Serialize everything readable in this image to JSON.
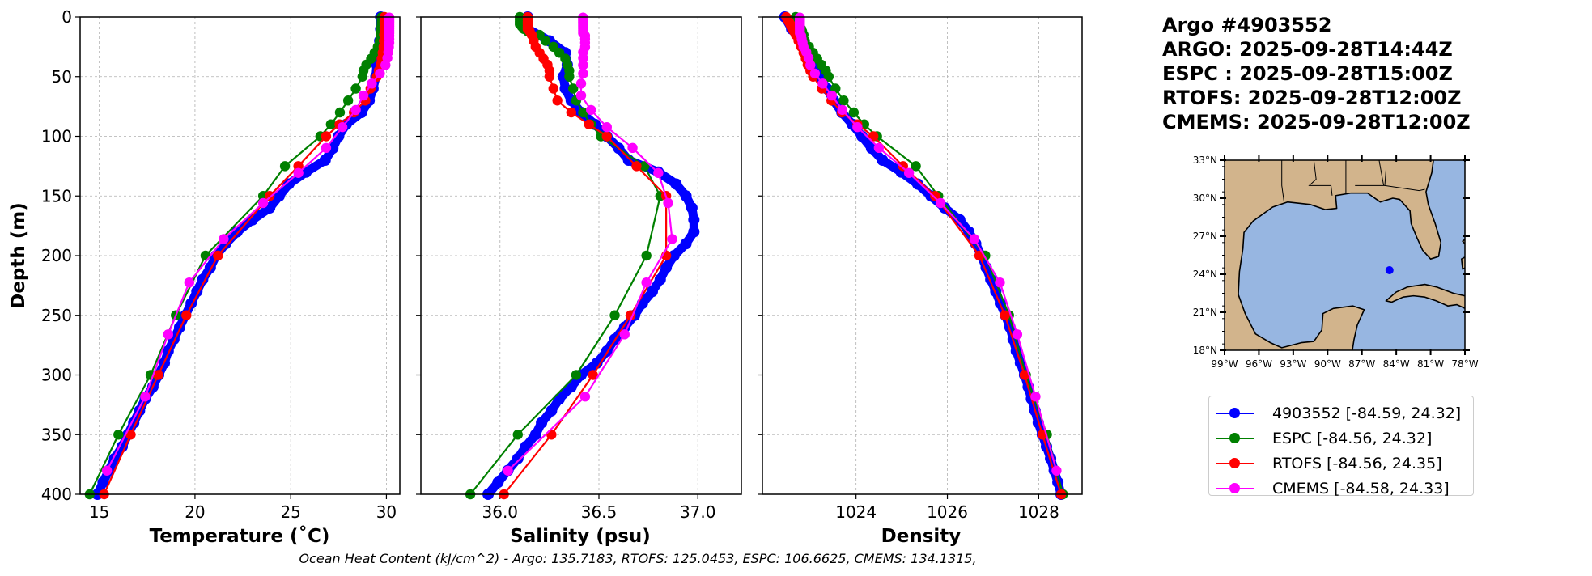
{
  "header": {
    "lines": [
      "Argo #4903552",
      "ARGO: 2025-09-28T14:44Z",
      "ESPC : 2025-09-28T15:00Z",
      "RTOFS: 2025-09-28T12:00Z",
      "CMEMS: 2025-09-28T12:00Z"
    ]
  },
  "footer": {
    "ohc_text": "Ocean Heat Content (kJ/cm^2) - Argo: 135.7183,  RTOFS: 125.0453,  ESPC: 106.6625,  CMEMS: 134.1315,"
  },
  "map": {
    "lat_labels": [
      "33°N",
      "30°N",
      "27°N",
      "24°N",
      "21°N",
      "18°N"
    ],
    "lat_values": [
      33,
      30,
      27,
      24,
      21,
      18
    ],
    "lon_labels": [
      "99°W",
      "96°W",
      "93°W",
      "90°W",
      "87°W",
      "84°W",
      "81°W",
      "78°W"
    ],
    "lon_values": [
      -99,
      -96,
      -93,
      -90,
      -87,
      -84,
      -81,
      -78
    ],
    "extent": {
      "lon": [
        -99,
        -78
      ],
      "lat": [
        18,
        33
      ]
    },
    "float_position": {
      "lon": -84.59,
      "lat": 24.32
    },
    "colors": {
      "land": "#d2b48c",
      "water": "#97b6e1",
      "marker": "#0000ff"
    }
  },
  "legend": {
    "entries": [
      {
        "label": "4903552 [-84.59, 24.32]",
        "color": "#0000ff"
      },
      {
        "label": "ESPC [-84.56, 24.32]",
        "color": "#008000"
      },
      {
        "label": "RTOFS [-84.56, 24.35]",
        "color": "#ff0000"
      },
      {
        "label": "CMEMS [-84.58, 24.33]",
        "color": "#ff00ff"
      }
    ]
  },
  "chart_data": {
    "type": "line",
    "ylabel": "Depth (m)",
    "ylim": [
      400,
      0
    ],
    "yticks": [
      0,
      50,
      100,
      150,
      200,
      250,
      300,
      350,
      400
    ],
    "grid": true,
    "depths": {
      "argo": [
        0,
        10,
        20,
        30,
        40,
        50,
        60,
        70,
        80,
        90,
        100,
        110,
        120,
        130,
        140,
        150,
        160,
        170,
        180,
        190,
        200,
        210,
        220,
        230,
        240,
        250,
        260,
        270,
        280,
        290,
        300,
        310,
        320,
        330,
        340,
        350,
        360,
        370,
        380,
        390,
        400
      ],
      "espc": [
        0,
        2,
        4,
        6,
        8,
        10,
        12,
        15,
        20,
        25,
        30,
        35,
        40,
        45,
        50,
        60,
        70,
        80,
        90,
        100,
        125,
        150,
        200,
        250,
        300,
        350,
        400
      ],
      "rtofs": [
        0,
        2,
        4,
        6,
        8,
        10,
        12,
        15,
        20,
        25,
        30,
        35,
        40,
        45,
        50,
        60,
        70,
        80,
        90,
        100,
        125,
        150,
        200,
        250,
        300,
        350,
        400
      ],
      "cmems": [
        0.5,
        1.5,
        2.6,
        3.8,
        5.1,
        6.4,
        7.9,
        9.6,
        11.4,
        13.5,
        15.8,
        18.5,
        21.6,
        25.2,
        29.4,
        34.4,
        40.3,
        47.4,
        55.8,
        65.8,
        77.9,
        92.3,
        109.7,
        130.7,
        155.9,
        186.1,
        222.5,
        266.0,
        318.1,
        380.2
      ]
    },
    "panels": [
      {
        "id": "temperature",
        "xlabel": "Temperature (˚C)",
        "xlim": [
          14.0,
          30.7
        ],
        "xticks": [
          15,
          20,
          25,
          30
        ],
        "xtick_labels": [
          "15",
          "20",
          "25",
          "30"
        ],
        "series": [
          {
            "name": "4903552",
            "source": "argo",
            "color": "#0000ff",
            "values": [
              29.7,
              29.7,
              29.65,
              29.6,
              29.5,
              29.45,
              29.3,
              29.1,
              28.7,
              27.9,
              27.5,
              27.2,
              26.8,
              25.8,
              24.9,
              24.4,
              23.9,
              23.0,
              22.2,
              21.6,
              21.1,
              20.8,
              20.4,
              20.1,
              19.8,
              19.5,
              19.2,
              18.9,
              18.6,
              18.4,
              18.1,
              17.8,
              17.4,
              17.1,
              16.8,
              16.5,
              16.2,
              15.8,
              15.5,
              15.2,
              14.9
            ]
          },
          {
            "name": "ESPC",
            "source": "espc",
            "color": "#008000",
            "values": [
              29.75,
              29.75,
              29.75,
              29.75,
              29.74,
              29.73,
              29.72,
              29.7,
              29.65,
              29.55,
              29.38,
              29.2,
              28.95,
              28.8,
              28.75,
              28.4,
              28.0,
              27.57,
              27.1,
              26.55,
              24.7,
              23.56,
              20.55,
              19.0,
              17.68,
              16.0,
              14.5
            ]
          },
          {
            "name": "RTOFS",
            "source": "rtofs",
            "color": "#ff0000",
            "values": [
              29.9,
              29.9,
              29.9,
              29.9,
              29.9,
              29.9,
              29.9,
              29.88,
              29.87,
              29.85,
              29.8,
              29.75,
              29.7,
              29.6,
              29.5,
              29.17,
              28.9,
              28.3,
              27.55,
              26.85,
              25.4,
              23.9,
              21.2,
              19.55,
              18.08,
              16.64,
              15.25
            ]
          },
          {
            "name": "CMEMS",
            "source": "cmems",
            "color": "#ff00ff",
            "values": [
              30.15,
              30.15,
              30.15,
              30.15,
              30.15,
              30.15,
              30.15,
              30.15,
              30.15,
              30.15,
              30.15,
              30.15,
              30.15,
              30.13,
              30.1,
              30.05,
              29.95,
              29.66,
              29.24,
              28.8,
              28.4,
              27.7,
              26.85,
              25.4,
              23.56,
              21.5,
              19.7,
              18.6,
              17.4,
              15.4
            ]
          }
        ]
      },
      {
        "id": "salinity",
        "xlabel": "Salinity (psu)",
        "xlim": [
          35.6,
          37.22
        ],
        "xticks": [
          36.0,
          36.5,
          37.0
        ],
        "xtick_labels": [
          "36.0",
          "36.5",
          "37.0"
        ],
        "series": [
          {
            "name": "4903552",
            "source": "argo",
            "color": "#0000ff",
            "values": [
              36.14,
              36.14,
              36.25,
              36.33,
              36.34,
              36.32,
              36.33,
              36.36,
              36.41,
              36.48,
              36.54,
              36.6,
              36.65,
              36.8,
              36.89,
              36.94,
              36.97,
              36.98,
              36.98,
              36.94,
              36.88,
              36.84,
              36.81,
              36.77,
              36.72,
              36.68,
              36.63,
              36.58,
              36.54,
              36.49,
              36.41,
              36.36,
              36.3,
              36.26,
              36.21,
              36.18,
              36.13,
              36.09,
              36.04,
              35.99,
              35.94
            ]
          },
          {
            "name": "ESPC",
            "source": "espc",
            "color": "#008000",
            "values": [
              36.1,
              36.1,
              36.1,
              36.1,
              36.11,
              36.12,
              36.14,
              36.2,
              36.23,
              36.27,
              36.3,
              36.33,
              36.34,
              36.35,
              36.35,
              36.37,
              36.385,
              36.42,
              36.46,
              36.51,
              36.73,
              36.81,
              36.74,
              36.58,
              36.385,
              36.09,
              35.85
            ]
          },
          {
            "name": "RTOFS",
            "source": "rtofs",
            "color": "#ff0000",
            "values": [
              36.14,
              36.14,
              36.14,
              36.14,
              36.14,
              36.14,
              36.15,
              36.16,
              36.17,
              36.18,
              36.2,
              36.22,
              36.24,
              36.25,
              36.25,
              36.27,
              36.29,
              36.36,
              36.45,
              36.54,
              36.69,
              36.84,
              36.84,
              36.66,
              36.47,
              36.26,
              36.02
            ]
          },
          {
            "name": "CMEMS",
            "source": "cmems",
            "color": "#ff00ff",
            "values": [
              36.42,
              36.42,
              36.42,
              36.42,
              36.42,
              36.42,
              36.42,
              36.42,
              36.42,
              36.42,
              36.43,
              36.43,
              36.43,
              36.43,
              36.42,
              36.42,
              36.42,
              36.42,
              36.41,
              36.41,
              36.46,
              36.54,
              36.67,
              36.8,
              36.85,
              36.87,
              36.74,
              36.63,
              36.43,
              36.04
            ]
          }
        ]
      },
      {
        "id": "density",
        "xlabel": "Density",
        "xlim": [
          1021.95,
          1028.95
        ],
        "xticks": [
          1024,
          1026,
          1028
        ],
        "xtick_labels": [
          "1024",
          "1026",
          "1028"
        ],
        "series": [
          {
            "name": "4903552",
            "source": "argo",
            "color": "#0000ff",
            "values": [
              1022.44,
              1022.59,
              1022.77,
              1022.91,
              1023.09,
              1023.21,
              1023.36,
              1023.51,
              1023.69,
              1023.92,
              1024.13,
              1024.34,
              1024.58,
              1024.99,
              1025.35,
              1025.64,
              1025.94,
              1026.27,
              1026.47,
              1026.62,
              1026.74,
              1026.85,
              1026.95,
              1027.06,
              1027.16,
              1027.27,
              1027.37,
              1027.44,
              1027.51,
              1027.6,
              1027.69,
              1027.77,
              1027.84,
              1027.92,
              1027.99,
              1028.08,
              1028.17,
              1028.26,
              1028.34,
              1028.42,
              1028.49
            ]
          },
          {
            "name": "ESPC",
            "source": "espc",
            "color": "#008000",
            "values": [
              1022.68,
              1022.7,
              1022.72,
              1022.74,
              1022.77,
              1022.8,
              1022.82,
              1022.85,
              1022.88,
              1022.97,
              1023.06,
              1023.15,
              1023.24,
              1023.34,
              1023.4,
              1023.55,
              1023.73,
              1023.95,
              1024.18,
              1024.46,
              1025.31,
              1025.8,
              1026.83,
              1027.35,
              1027.72,
              1028.18,
              1028.53
            ]
          },
          {
            "name": "RTOFS",
            "source": "rtofs",
            "color": "#ff0000",
            "values": [
              1022.47,
              1022.5,
              1022.53,
              1022.56,
              1022.58,
              1022.6,
              1022.64,
              1022.68,
              1022.74,
              1022.8,
              1022.85,
              1022.9,
              1022.94,
              1023.0,
              1023.06,
              1023.25,
              1023.46,
              1023.69,
              1024.03,
              1024.38,
              1025.03,
              1025.73,
              1026.7,
              1027.26,
              1027.69,
              1028.08,
              1028.49
            ]
          },
          {
            "name": "CMEMS",
            "source": "cmems",
            "color": "#ff00ff",
            "values": [
              1022.77,
              1022.77,
              1022.77,
              1022.77,
              1022.77,
              1022.77,
              1022.77,
              1022.77,
              1022.77,
              1022.77,
              1022.8,
              1022.81,
              1022.83,
              1022.85,
              1022.91,
              1022.96,
              1023.0,
              1023.1,
              1023.27,
              1023.47,
              1023.7,
              1024.03,
              1024.5,
              1025.16,
              1025.85,
              1026.59,
              1027.15,
              1027.53,
              1027.93,
              1028.39
            ]
          }
        ]
      }
    ]
  }
}
